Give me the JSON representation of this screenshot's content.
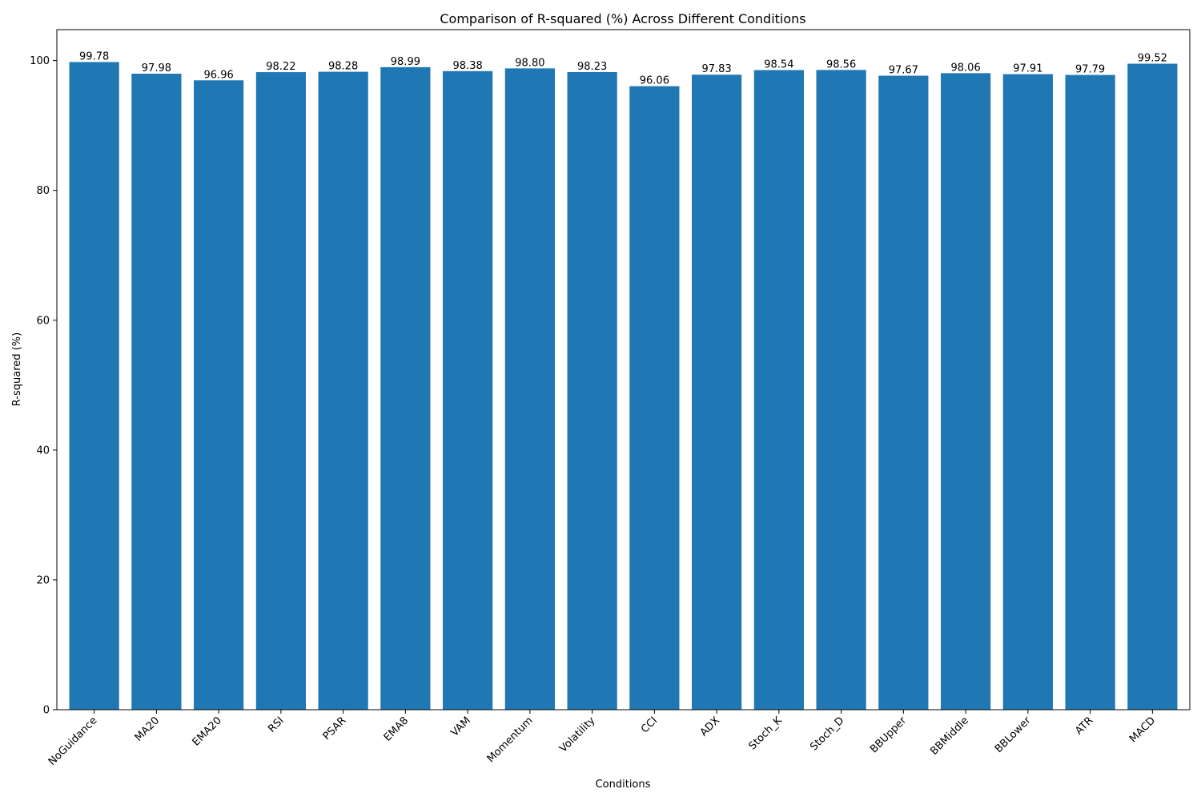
{
  "chart_data": {
    "type": "bar",
    "title": "Comparison of R-squared (%) Across Different Conditions",
    "xlabel": "Conditions",
    "ylabel": "R-squared (%)",
    "categories": [
      "NoGuidance",
      "MA20",
      "EMA20",
      "RSI",
      "PSAR",
      "EMA8",
      "VAM",
      "Momentum",
      "Volatility",
      "CCI",
      "ADX",
      "Stoch_K",
      "Stoch_D",
      "BBUpper",
      "BBMiddle",
      "BBLower",
      "ATR",
      "MACD"
    ],
    "values": [
      99.78,
      97.98,
      96.96,
      98.22,
      98.28,
      98.99,
      98.38,
      98.8,
      98.23,
      96.06,
      97.83,
      98.54,
      98.56,
      97.67,
      98.06,
      97.91,
      97.79,
      99.52
    ],
    "value_labels": [
      "99.78",
      "97.98",
      "96.96",
      "98.22",
      "98.28",
      "98.99",
      "98.38",
      "98.80",
      "98.23",
      "96.06",
      "97.83",
      "98.54",
      "98.56",
      "97.67",
      "98.06",
      "97.91",
      "97.79",
      "99.52"
    ],
    "ylim": [
      0,
      104.77
    ],
    "yticks": [
      0,
      20,
      40,
      60,
      80,
      100
    ],
    "grid": false,
    "legend": "none",
    "bar_color": "#1f77b4"
  }
}
